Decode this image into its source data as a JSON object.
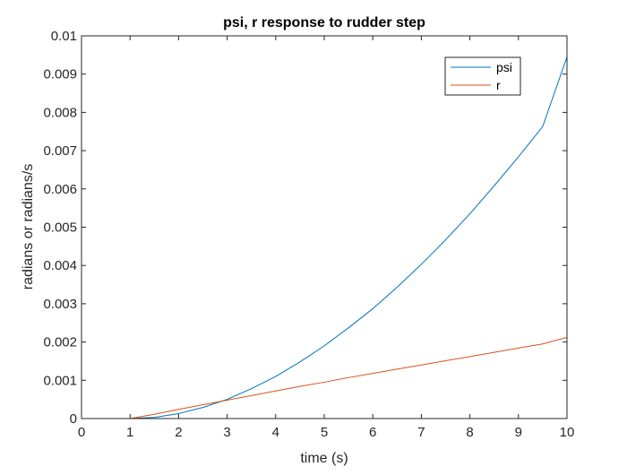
{
  "chart_data": {
    "type": "line",
    "title": "psi, r response to rudder step",
    "xlabel": "time (s)",
    "ylabel": "radians or radians/s",
    "xlim": [
      0,
      10
    ],
    "ylim": [
      0,
      0.01
    ],
    "xticks": [
      0,
      1,
      2,
      3,
      4,
      5,
      6,
      7,
      8,
      9,
      10
    ],
    "xtick_labels": [
      "0",
      "1",
      "2",
      "3",
      "4",
      "5",
      "6",
      "7",
      "8",
      "9",
      "10"
    ],
    "yticks": [
      0,
      0.001,
      0.002,
      0.003,
      0.004,
      0.005,
      0.006,
      0.007,
      0.008,
      0.009,
      0.01
    ],
    "ytick_labels": [
      "0",
      "0.001",
      "0.002",
      "0.003",
      "0.004",
      "0.005",
      "0.006",
      "0.007",
      "0.008",
      "0.009",
      "0.01"
    ],
    "grid": false,
    "legend_position": "top-right",
    "series": [
      {
        "name": "psi",
        "color": "#0072BD",
        "x": [
          0,
          1,
          1.5,
          2,
          2.5,
          3,
          3.5,
          4,
          4.5,
          5,
          5.5,
          6,
          6.5,
          7,
          7.5,
          8,
          8.5,
          9,
          9.5,
          10
        ],
        "y": [
          0,
          0,
          3e-05,
          0.00013,
          0.00029,
          0.0005,
          0.00078,
          0.0011,
          0.00148,
          0.0019,
          0.00237,
          0.00287,
          0.00343,
          0.00403,
          0.00467,
          0.00535,
          0.00608,
          0.00684,
          0.00763,
          0.00945
        ]
      },
      {
        "name": "r",
        "color": "#D95319",
        "x": [
          0,
          1,
          1.5,
          2,
          2.5,
          3,
          3.5,
          4,
          4.5,
          5,
          5.5,
          6,
          6.5,
          7,
          7.5,
          8,
          8.5,
          9,
          9.5,
          10
        ],
        "y": [
          0,
          0,
          0.00011,
          0.00024,
          0.00036,
          0.00048,
          0.0006,
          0.00072,
          0.00084,
          0.00095,
          0.00107,
          0.00118,
          0.00129,
          0.0014,
          0.00151,
          0.00162,
          0.00173,
          0.00184,
          0.00195,
          0.00212
        ]
      }
    ]
  }
}
